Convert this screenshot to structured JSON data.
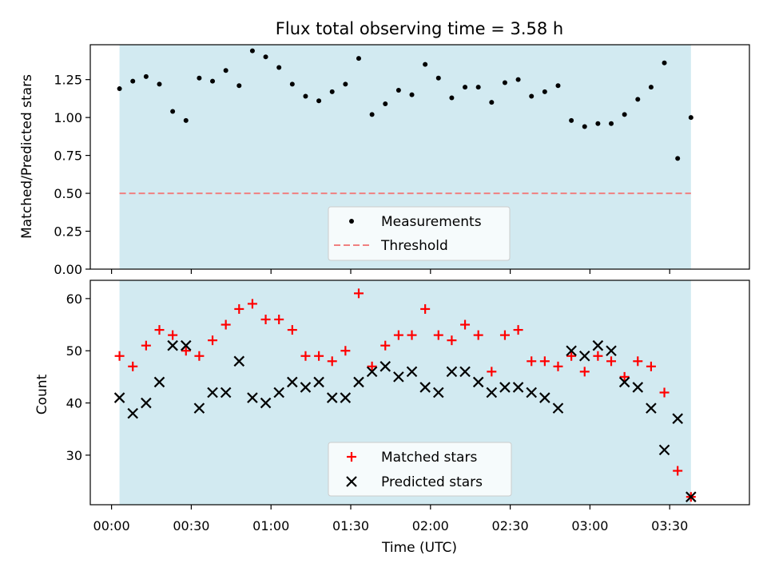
{
  "title": "Flux total observing time = 3.58 h",
  "colors": {
    "shade": "#add8e6",
    "measurement": "#000000",
    "threshold": "#f08080",
    "matched": "#ff0000",
    "predicted": "#000000"
  },
  "chart_data": [
    {
      "type": "scatter",
      "ylabel": "Matched/Predicted stars",
      "ylim": [
        0,
        1.48
      ],
      "yticks": [
        "0.00",
        "0.25",
        "0.50",
        "0.75",
        "1.00",
        "1.25"
      ],
      "ytick_values": [
        0,
        0.25,
        0.5,
        0.75,
        1.0,
        1.25
      ],
      "shaded_interval": [
        "00:03",
        "03:38"
      ],
      "legend": {
        "placement": "lower-center",
        "entries": [
          "Measurements",
          "Threshold"
        ]
      },
      "threshold": 0.5,
      "series": [
        {
          "name": "Measurements",
          "x": [
            "00:03",
            "00:08",
            "00:13",
            "00:18",
            "00:23",
            "00:28",
            "00:33",
            "00:38",
            "00:43",
            "00:48",
            "00:53",
            "00:58",
            "01:03",
            "01:08",
            "01:13",
            "01:18",
            "01:23",
            "01:28",
            "01:33",
            "01:38",
            "01:43",
            "01:48",
            "01:53",
            "01:58",
            "02:03",
            "02:08",
            "02:13",
            "02:18",
            "02:23",
            "02:28",
            "02:33",
            "02:38",
            "02:43",
            "02:48",
            "02:53",
            "02:58",
            "03:03",
            "03:08",
            "03:13",
            "03:18",
            "03:23",
            "03:28",
            "03:33",
            "03:38"
          ],
          "y": [
            1.19,
            1.24,
            1.27,
            1.22,
            1.04,
            0.98,
            1.26,
            1.24,
            1.31,
            1.21,
            1.44,
            1.4,
            1.33,
            1.22,
            1.14,
            1.11,
            1.17,
            1.22,
            1.39,
            1.02,
            1.09,
            1.18,
            1.15,
            1.35,
            1.26,
            1.13,
            1.2,
            1.2,
            1.1,
            1.23,
            1.25,
            1.14,
            1.17,
            1.21,
            0.98,
            0.94,
            0.96,
            0.96,
            1.02,
            1.12,
            1.2,
            1.36,
            0.73,
            1.0
          ]
        }
      ]
    },
    {
      "type": "scatter",
      "ylabel": "Count",
      "xlabel": "Time (UTC)",
      "ylim": [
        20.5,
        63.5
      ],
      "yticks": [
        "30",
        "40",
        "50",
        "60"
      ],
      "ytick_values": [
        30,
        40,
        50,
        60
      ],
      "xlim": [
        "-00:08",
        "04:00"
      ],
      "xticks": [
        "00:00",
        "00:30",
        "01:00",
        "01:30",
        "02:00",
        "02:30",
        "03:00",
        "03:30"
      ],
      "shaded_interval": [
        "00:03",
        "03:38"
      ],
      "legend": {
        "placement": "lower-center",
        "entries": [
          "Matched stars",
          "Predicted stars"
        ]
      },
      "series": [
        {
          "name": "Matched stars",
          "x": [
            "00:03",
            "00:08",
            "00:13",
            "00:18",
            "00:23",
            "00:28",
            "00:33",
            "00:38",
            "00:43",
            "00:48",
            "00:53",
            "00:58",
            "01:03",
            "01:08",
            "01:13",
            "01:18",
            "01:23",
            "01:28",
            "01:33",
            "01:38",
            "01:43",
            "01:48",
            "01:53",
            "01:58",
            "02:03",
            "02:08",
            "02:13",
            "02:18",
            "02:23",
            "02:28",
            "02:33",
            "02:38",
            "02:43",
            "02:48",
            "02:53",
            "02:58",
            "03:03",
            "03:08",
            "03:13",
            "03:18",
            "03:23",
            "03:28",
            "03:33",
            "03:38"
          ],
          "y": [
            49,
            47,
            51,
            54,
            53,
            50,
            49,
            52,
            55,
            58,
            59,
            56,
            56,
            54,
            49,
            49,
            48,
            50,
            61,
            47,
            51,
            53,
            53,
            58,
            53,
            52,
            55,
            53,
            46,
            53,
            54,
            48,
            48,
            47,
            49,
            46,
            49,
            48,
            45,
            48,
            47,
            42,
            27,
            22
          ]
        },
        {
          "name": "Predicted stars",
          "x": [
            "00:03",
            "00:08",
            "00:13",
            "00:18",
            "00:23",
            "00:28",
            "00:33",
            "00:38",
            "00:43",
            "00:48",
            "00:53",
            "00:58",
            "01:03",
            "01:08",
            "01:13",
            "01:18",
            "01:23",
            "01:28",
            "01:33",
            "01:38",
            "01:43",
            "01:48",
            "01:53",
            "01:58",
            "02:03",
            "02:08",
            "02:13",
            "02:18",
            "02:23",
            "02:28",
            "02:33",
            "02:38",
            "02:43",
            "02:48",
            "02:53",
            "02:58",
            "03:03",
            "03:08",
            "03:13",
            "03:18",
            "03:23",
            "03:28",
            "03:33",
            "03:38"
          ],
          "y": [
            41,
            38,
            40,
            44,
            51,
            51,
            39,
            42,
            42,
            48,
            41,
            40,
            42,
            44,
            43,
            44,
            41,
            41,
            44,
            46,
            47,
            45,
            46,
            43,
            42,
            46,
            46,
            44,
            42,
            43,
            43,
            42,
            41,
            39,
            50,
            49,
            51,
            50,
            44,
            43,
            39,
            31,
            37,
            22
          ]
        }
      ]
    }
  ]
}
